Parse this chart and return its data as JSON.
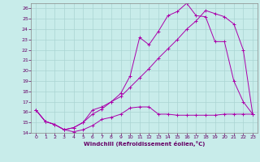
{
  "xlabel": "Windchill (Refroidissement éolien,°C)",
  "background_color": "#c8ecea",
  "grid_color": "#aad4d2",
  "line_color": "#aa00aa",
  "xlim": [
    -0.5,
    23.5
  ],
  "ylim": [
    14,
    26.5
  ],
  "yticks": [
    14,
    15,
    16,
    17,
    18,
    19,
    20,
    21,
    22,
    23,
    24,
    25,
    26
  ],
  "xticks": [
    0,
    1,
    2,
    3,
    4,
    5,
    6,
    7,
    8,
    9,
    10,
    11,
    12,
    13,
    14,
    15,
    16,
    17,
    18,
    19,
    20,
    21,
    22,
    23
  ],
  "line1_x": [
    0,
    1,
    2,
    3,
    4,
    5,
    6,
    7,
    8,
    9,
    10,
    11,
    12,
    13,
    14,
    15,
    16,
    17,
    18,
    19,
    20,
    21,
    22,
    23
  ],
  "line1_y": [
    16.2,
    15.1,
    14.8,
    14.3,
    14.1,
    14.3,
    14.7,
    15.3,
    15.5,
    15.8,
    16.4,
    16.5,
    16.5,
    15.8,
    15.8,
    15.7,
    15.7,
    15.7,
    15.7,
    15.7,
    15.8,
    15.8,
    15.8,
    15.8
  ],
  "line2_x": [
    0,
    1,
    2,
    3,
    4,
    5,
    6,
    7,
    8,
    9,
    10,
    11,
    12,
    13,
    14,
    15,
    16,
    17,
    18,
    19,
    20,
    21,
    22,
    23
  ],
  "line2_y": [
    16.2,
    15.1,
    14.8,
    14.3,
    14.5,
    15.0,
    15.8,
    16.3,
    17.0,
    17.5,
    18.4,
    19.3,
    20.2,
    21.2,
    22.1,
    23.0,
    24.0,
    24.8,
    25.8,
    25.5,
    25.2,
    24.5,
    22.0,
    15.8
  ],
  "line3_x": [
    0,
    1,
    2,
    3,
    4,
    5,
    6,
    7,
    8,
    9,
    10,
    11,
    12,
    13,
    14,
    15,
    16,
    17,
    18,
    19,
    20,
    21,
    22,
    23
  ],
  "line3_y": [
    16.2,
    15.1,
    14.8,
    14.3,
    14.5,
    15.0,
    16.2,
    16.5,
    17.0,
    17.8,
    19.5,
    23.2,
    22.5,
    23.8,
    25.3,
    25.7,
    26.5,
    25.3,
    25.2,
    22.8,
    22.8,
    19.0,
    17.0,
    15.8
  ]
}
